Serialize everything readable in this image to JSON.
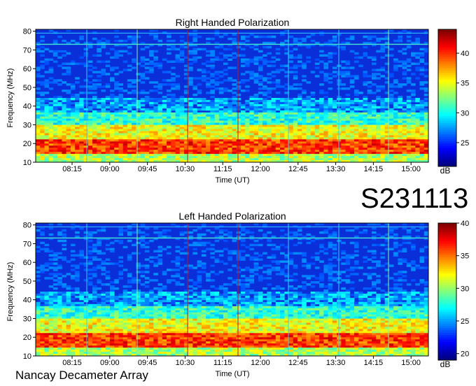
{
  "figure": {
    "id_label": "S231113",
    "footer": "Nancay Decameter Array"
  },
  "chart_data": [
    {
      "type": "heatmap",
      "title": "Right Handed Polarization",
      "xlabel": "Time (UT)",
      "ylabel": "Frequency (MHz)",
      "x_ticks": [
        "08:15",
        "09:00",
        "09:45",
        "10:30",
        "11:15",
        "12:00",
        "12:45",
        "13:30",
        "14:15",
        "15:00"
      ],
      "y_ticks": [
        10,
        20,
        30,
        40,
        50,
        60,
        70,
        80
      ],
      "ylim": [
        10,
        81
      ],
      "colorbar": {
        "ticks": [
          25,
          30,
          35,
          40
        ],
        "range": [
          21,
          44
        ],
        "unit": "dB"
      }
    },
    {
      "type": "heatmap",
      "title": "Left Handed Polarization",
      "xlabel": "Time (UT)",
      "ylabel": "Frequency (MHz)",
      "x_ticks": [
        "08:15",
        "09:00",
        "09:45",
        "10:30",
        "11:15",
        "12:00",
        "12:45",
        "13:30",
        "14:15",
        "15:00"
      ],
      "y_ticks": [
        10,
        20,
        30,
        40,
        50,
        60,
        70,
        80
      ],
      "ylim": [
        10,
        81
      ],
      "colorbar": {
        "ticks": [
          20,
          25,
          30,
          35,
          40
        ],
        "range": [
          19,
          40
        ],
        "unit": "dB"
      }
    }
  ],
  "colors": {
    "jet_low": "#00007f",
    "jet_high": "#7f0000"
  }
}
